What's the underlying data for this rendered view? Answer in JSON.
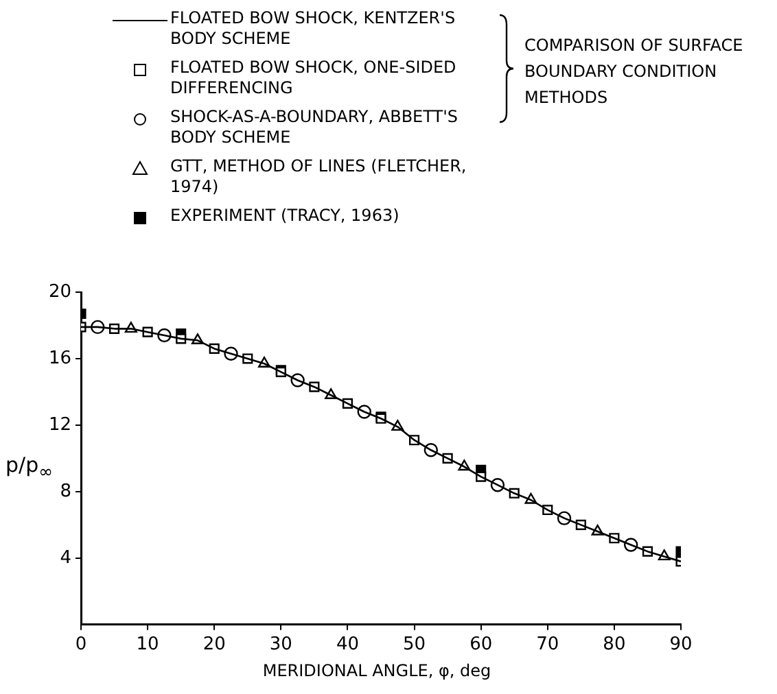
{
  "chart_data": {
    "type": "scatter",
    "xlabel": "MERIDIONAL ANGLE, φ, deg",
    "ylabel": "p/p$_{∞}$",
    "xlim": [
      0,
      90
    ],
    "xticks": [
      0,
      10,
      20,
      30,
      40,
      50,
      60,
      70,
      80,
      90
    ],
    "ylim": [
      0,
      20
    ],
    "yticks": [
      4,
      8,
      12,
      16,
      20
    ],
    "grid": false,
    "legend": "top",
    "annotations": [
      "COMPARISON OF SURFACE BOUNDARY CONDITION METHODS"
    ],
    "series": [
      {
        "name": "FLOATED BOW SHOCK, KENTZER'S BODY SCHEME",
        "type": "line",
        "marker": "none",
        "color": "#000000",
        "x": [
          0,
          2.5,
          5,
          7.5,
          10,
          12.5,
          15,
          17.5,
          20,
          22.5,
          25,
          27.5,
          30,
          32.5,
          35,
          37.5,
          40,
          42.5,
          45,
          47.5,
          50,
          52.5,
          55,
          57.5,
          60,
          62.5,
          65,
          67.5,
          70,
          72.5,
          75,
          77.5,
          80,
          82.5,
          85,
          87.5,
          90
        ],
        "values": [
          17.9,
          17.9,
          17.8,
          17.8,
          17.6,
          17.4,
          17.2,
          17.1,
          16.6,
          16.3,
          16.0,
          15.7,
          15.2,
          14.7,
          14.3,
          13.8,
          13.3,
          12.8,
          12.4,
          11.9,
          11.1,
          10.5,
          10.0,
          9.5,
          8.9,
          8.4,
          7.9,
          7.5,
          6.9,
          6.4,
          6.0,
          5.6,
          5.2,
          4.8,
          4.4,
          4.1,
          3.8
        ]
      },
      {
        "name": "EXPERIMENT (TRACY, 1963)",
        "marker": "square",
        "color": "#000000",
        "x": [
          0,
          15,
          30,
          45,
          60,
          90
        ],
        "values": [
          18.7,
          17.5,
          15.3,
          12.5,
          9.3,
          4.4
        ]
      },
      {
        "name": "FLOATED BOW SHOCK, ONE-SIDED DIFFERENCING",
        "marker": "square",
        "color": "#000000",
        "x": [
          0,
          5,
          10,
          15,
          20,
          25,
          30,
          35,
          40,
          45,
          50,
          55,
          60,
          65,
          70,
          75,
          80,
          85,
          90
        ],
        "values": [
          17.9,
          17.8,
          17.6,
          17.2,
          16.6,
          16.0,
          15.2,
          14.3,
          13.3,
          12.4,
          11.1,
          10.0,
          8.9,
          7.9,
          6.9,
          6.0,
          5.2,
          4.4,
          3.8
        ]
      },
      {
        "name": "SHOCK-AS-A-BOUNDARY, ABBETT'S BODY SCHEME",
        "marker": "circle",
        "color": "#000000",
        "x": [
          2.5,
          12.5,
          22.5,
          32.5,
          42.5,
          52.5,
          62.5,
          72.5,
          82.5
        ],
        "values": [
          17.9,
          17.4,
          16.3,
          14.7,
          12.8,
          10.5,
          8.4,
          6.4,
          4.8
        ]
      },
      {
        "name": "GTT, METHOD OF LINES (FLETCHER, 1974)",
        "marker": "triangle",
        "color": "#000000",
        "x": [
          7.5,
          17.5,
          27.5,
          37.5,
          47.5,
          57.5,
          67.5,
          77.5,
          87.5
        ],
        "values": [
          17.8,
          17.1,
          15.7,
          13.8,
          11.9,
          9.5,
          7.5,
          5.6,
          4.1
        ]
      }
    ]
  }
}
